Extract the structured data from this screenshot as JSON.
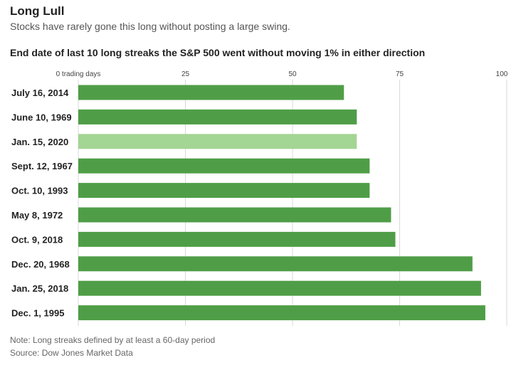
{
  "header": {
    "title": "Long Lull",
    "subtitle": "Stocks have rarely gone this long without posting a large swing."
  },
  "chart_data": {
    "type": "bar",
    "orientation": "horizontal",
    "title": "End date of last 10 long streaks the S&P 500 went without moving 1% in either direction",
    "xlabel": "trading days",
    "xlim": [
      0,
      100
    ],
    "ticks": [
      {
        "value": 0,
        "label": "0 trading days"
      },
      {
        "value": 25,
        "label": "25"
      },
      {
        "value": 50,
        "label": "50"
      },
      {
        "value": 75,
        "label": "75"
      },
      {
        "value": 100,
        "label": "100"
      }
    ],
    "grid": true,
    "categories": [
      "July 16, 2014",
      "June 10, 1969",
      "Jan. 15, 2020",
      "Sept. 12, 1967",
      "Oct. 10, 1993",
      "May 8, 1972",
      "Oct. 9, 2018",
      "Dec. 20, 1968",
      "Jan. 25, 2018",
      "Dec. 1, 1995"
    ],
    "values": [
      62,
      65,
      65,
      68,
      68,
      73,
      74,
      92,
      94,
      95
    ],
    "highlight_index": 2,
    "colors": {
      "bar": "#4f9e47",
      "highlight": "#a3d594",
      "grid": "#d9d9d9"
    }
  },
  "footer": {
    "note": "Note: Long streaks defined by at least a 60-day period",
    "source": "Source: Dow Jones Market Data"
  }
}
